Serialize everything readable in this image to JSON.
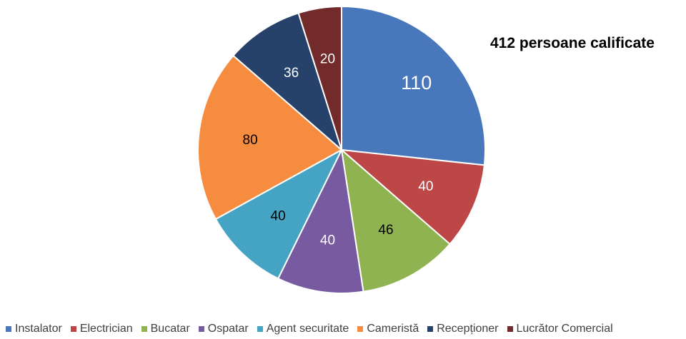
{
  "chart_data": {
    "type": "pie",
    "title": "412 persoane calificate",
    "legend_position": "bottom",
    "categories": [
      "Instalator",
      "Electrician",
      "Bucatar",
      "Ospatar",
      "Agent securitate",
      "Cameristă",
      "Recepționer",
      "Lucrător Comercial"
    ],
    "values": [
      110,
      40,
      46,
      40,
      40,
      80,
      36,
      20
    ],
    "colors": [
      "#4877bb",
      "#bd4746",
      "#8fb350",
      "#775aa0",
      "#45a4c3",
      "#f58c3f",
      "#26426b",
      "#722a2a"
    ],
    "label_colors": [
      "#ffffff",
      "#ffffff",
      "#000000",
      "#ffffff",
      "#000000",
      "#000000",
      "#ffffff",
      "#ffffff"
    ]
  }
}
